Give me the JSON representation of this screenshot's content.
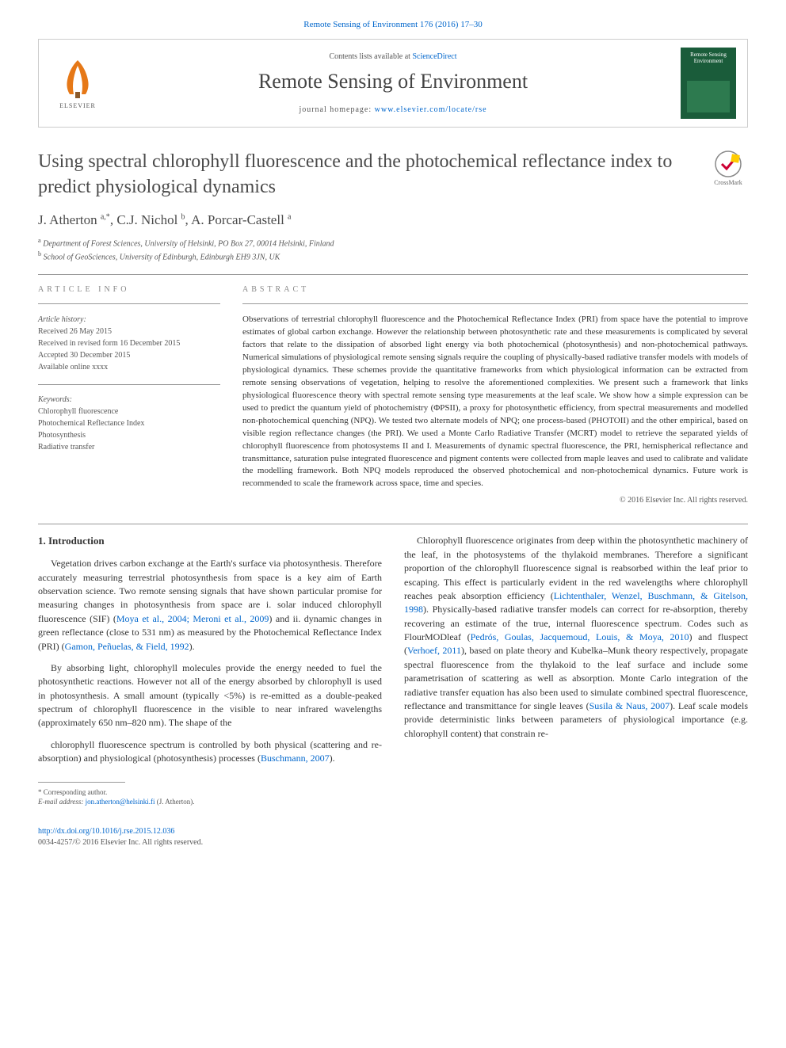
{
  "top_link": {
    "text": "Remote Sensing of Environment 176 (2016) 17–30",
    "color": "#0066cc"
  },
  "header": {
    "contents_prefix": "Contents lists available at ",
    "contents_link": "ScienceDirect",
    "journal_name": "Remote Sensing of Environment",
    "homepage_prefix": "journal homepage: ",
    "homepage_link": "www.elsevier.com/locate/rse",
    "elsevier_label": "ELSEVIER",
    "cover_label_line1": "Remote Sensing",
    "cover_label_line2": "Environment"
  },
  "crossmark_label": "CrossMark",
  "title": "Using spectral chlorophyll fluorescence and the photochemical reflectance index to predict physiological dynamics",
  "authors_html": "J. Atherton <sup>a,*</sup>, C.J. Nichol <sup>b</sup>, A. Porcar-Castell <sup>a</sup>",
  "affiliations": [
    {
      "sup": "a",
      "text": "Department of Forest Sciences, University of Helsinki, PO Box 27, 00014 Helsinki, Finland"
    },
    {
      "sup": "b",
      "text": "School of GeoSciences, University of Edinburgh, Edinburgh EH9 3JN, UK"
    }
  ],
  "info": {
    "label": "article info",
    "history_label": "Article history:",
    "history": [
      "Received 26 May 2015",
      "Received in revised form 16 December 2015",
      "Accepted 30 December 2015",
      "Available online xxxx"
    ],
    "keywords_label": "Keywords:",
    "keywords": [
      "Chlorophyll fluorescence",
      "Photochemical Reflectance Index",
      "Photosynthesis",
      "Radiative transfer"
    ]
  },
  "abstract": {
    "label": "abstract",
    "text": "Observations of terrestrial chlorophyll fluorescence and the Photochemical Reflectance Index (PRI) from space have the potential to improve estimates of global carbon exchange. However the relationship between photosynthetic rate and these measurements is complicated by several factors that relate to the dissipation of absorbed light energy via both photochemical (photosynthesis) and non-photochemical pathways. Numerical simulations of physiological remote sensing signals require the coupling of physically-based radiative transfer models with models of physiological dynamics. These schemes provide the quantitative frameworks from which physiological information can be extracted from remote sensing observations of vegetation, helping to resolve the aforementioned complexities. We present such a framework that links physiological fluorescence theory with spectral remote sensing type measurements at the leaf scale. We show how a simple expression can be used to predict the quantum yield of photochemistry (ΦPSII), a proxy for photosynthetic efficiency, from spectral measurements and modelled non-photochemical quenching (NPQ). We tested two alternate models of NPQ; one process-based (PHOTOII) and the other empirical, based on visible region reflectance changes (the PRI). We used a Monte Carlo Radiative Transfer (MCRT) model to retrieve the separated yields of chlorophyll fluorescence from photosystems II and I. Measurements of dynamic spectral fluorescence, the PRI, hemispherical reflectance and transmittance, saturation pulse integrated fluorescence and pigment contents were collected from maple leaves and used to calibrate and validate the modelling framework. Both NPQ models reproduced the observed photochemical and non-photochemical dynamics. Future work is recommended to scale the framework across space, time and species.",
    "copyright": "© 2016 Elsevier Inc. All rights reserved."
  },
  "intro": {
    "heading": "1. Introduction",
    "p1_a": "Vegetation drives carbon exchange at the Earth's surface via photosynthesis. Therefore accurately measuring terrestrial photosynthesis from space is a key aim of Earth observation science. Two remote sensing signals that have shown particular promise for measuring changes in photosynthesis from space are i. solar induced chlorophyll fluorescence (SIF) (",
    "p1_ref1": "Moya et al., 2004; Meroni et al., 2009",
    "p1_b": ") and ii. dynamic changes in green reflectance (close to 531 nm) as measured by the Photochemical Reflectance Index (PRI) (",
    "p1_ref2": "Gamon, Peñuelas, & Field, 1992",
    "p1_c": ").",
    "p2": "By absorbing light, chlorophyll molecules provide the energy needed to fuel the photosynthetic reactions. However not all of the energy absorbed by chlorophyll is used in photosynthesis. A small amount (typically <5%) is re-emitted as a double-peaked spectrum of chlorophyll fluorescence in the visible to near infrared wavelengths (approximately 650 nm–820 nm). The shape of the",
    "p3_a": "chlorophyll fluorescence spectrum is controlled by both physical (scattering and re-absorption) and physiological (photosynthesis) processes (",
    "p3_ref1": "Buschmann, 2007",
    "p3_b": ").",
    "p4_a": "Chlorophyll fluorescence originates from deep within the photosynthetic machinery of the leaf, in the photosystems of the thylakoid membranes. Therefore a significant proportion of the chlorophyll fluorescence signal is reabsorbed within the leaf prior to escaping. This effect is particularly evident in the red wavelengths where chlorophyll reaches peak absorption efficiency (",
    "p4_ref1": "Lichtenthaler, Wenzel, Buschmann, & Gitelson, 1998",
    "p4_b": "). Physically-based radiative transfer models can correct for re-absorption, thereby recovering an estimate of the true, internal fluorescence spectrum. Codes such as FlourMODleaf (",
    "p4_ref2": "Pedrós, Goulas, Jacquemoud, Louis, & Moya, 2010",
    "p4_c": ") and fluspect (",
    "p4_ref3": "Verhoef, 2011",
    "p4_d": "), based on plate theory and Kubelka–Munk theory respectively, propagate spectral fluorescence from the thylakoid to the leaf surface and include some parametrisation of scattering as well as absorption. Monte Carlo integration of the radiative transfer equation has also been used to simulate combined spectral fluorescence, reflectance and transmittance for single leaves (",
    "p4_ref4": "Susila & Naus, 2007",
    "p4_e": "). Leaf scale models provide deterministic links between parameters of physiological importance (e.g. chlorophyll content) that constrain re-"
  },
  "footnote": {
    "corr_label": "* Corresponding author.",
    "email_label": "E-mail address:",
    "email": "jon.atherton@helsinki.fi",
    "email_suffix": "(J. Atherton)."
  },
  "footer": {
    "doi": "http://dx.doi.org/10.1016/j.rse.2015.12.036",
    "issn_line": "0034-4257/© 2016 Elsevier Inc. All rights reserved."
  },
  "colors": {
    "link": "#0066cc",
    "text": "#333333",
    "muted": "#555555",
    "rule": "#999999",
    "cover_bg": "#1a5c3a"
  }
}
